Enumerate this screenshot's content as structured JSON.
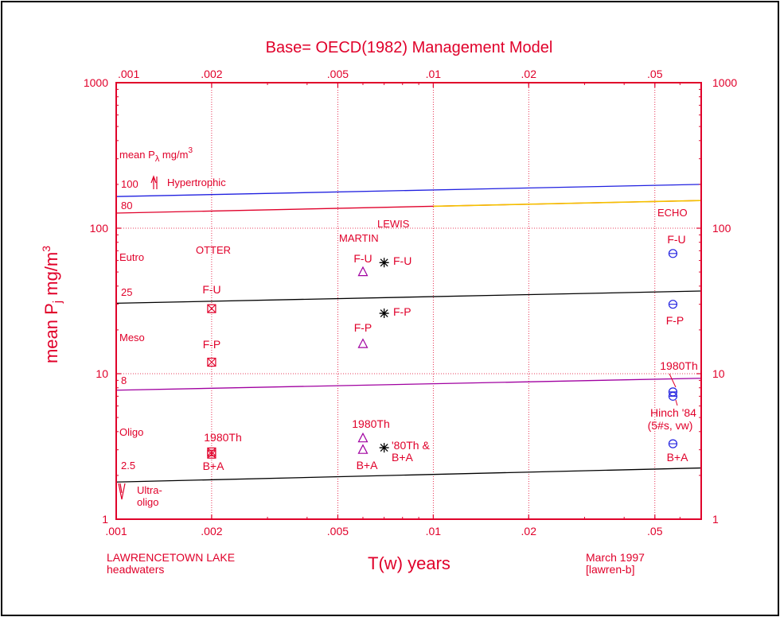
{
  "chart_data": {
    "type": "scatter",
    "title": "Base= OECD(1982) Management Model",
    "xlabel": "T(w) years",
    "ylabel": "mean Pj mg/m3",
    "ylabel_main": "mean P",
    "ylabel_sub": "j",
    "ylabel_unit": " mg/m",
    "ylabel_sup": "3",
    "xscale": "log",
    "yscale": "log",
    "xlim": [
      0.001,
      0.07
    ],
    "ylim": [
      1,
      1000
    ],
    "x_ticks": [
      ".001",
      ".002",
      ".005",
      ".01",
      ".02",
      ".05"
    ],
    "x_tick_values": [
      0.001,
      0.002,
      0.005,
      0.01,
      0.02,
      0.05
    ],
    "y_ticks": [
      "1",
      "10",
      "100",
      "1000"
    ],
    "y_tick_values": [
      1,
      10,
      100,
      1000
    ],
    "grid": true,
    "colors": {
      "axis": "#e0002a",
      "text": "#e0002a",
      "grid": "#e0002a",
      "triangle": "#a000a0",
      "circle": "#2020e0",
      "square": "#e0002a",
      "star": "#000000",
      "line_100": "#2020e0",
      "line_80": "#e0002a",
      "line_80_tail": "#f5c000",
      "line_25": "#000000",
      "line_8": "#a000a0",
      "line_2_5": "#000000"
    },
    "legend_box": {
      "title_main": "mean P",
      "title_sub": "λ",
      "title_unit": " mg/m",
      "title_sup": "3"
    },
    "boundary_lines": [
      {
        "name": "100",
        "points": [
          [
            0.001,
            165
          ],
          [
            0.07,
            200
          ]
        ]
      },
      {
        "name": "80",
        "points": [
          [
            0.001,
            127
          ],
          [
            0.07,
            155
          ]
        ]
      },
      {
        "name": "25",
        "points": [
          [
            0.001,
            30.5
          ],
          [
            0.07,
            37
          ]
        ]
      },
      {
        "name": "8",
        "points": [
          [
            0.001,
            7.7
          ],
          [
            0.07,
            9.3
          ]
        ]
      },
      {
        "name": "2.5",
        "points": [
          [
            0.001,
            1.8
          ],
          [
            0.07,
            2.25
          ]
        ]
      }
    ],
    "zone_labels": [
      {
        "text": "Hypertrophic",
        "value": "100"
      },
      {
        "text": "Eutro"
      },
      {
        "text": "Meso"
      },
      {
        "text": "Oligo"
      },
      {
        "text": "Ultra-",
        "text2": "oligo"
      }
    ],
    "lake_labels": [
      "OTTER",
      "MARTIN",
      "LEWIS",
      "ECHO"
    ],
    "series": [
      {
        "name": "OTTER",
        "marker": "square",
        "points": [
          {
            "x": 0.002,
            "y": 28,
            "label": "F-U"
          },
          {
            "x": 0.002,
            "y": 12,
            "label": "F-P"
          },
          {
            "x": 0.002,
            "y": 2.9,
            "label": "1980Th"
          },
          {
            "x": 0.002,
            "y": 2.8,
            "label": "B+A"
          }
        ]
      },
      {
        "name": "MARTIN",
        "marker": "triangle",
        "points": [
          {
            "x": 0.006,
            "y": 50,
            "label": "F-U"
          },
          {
            "x": 0.006,
            "y": 16,
            "label": "F-P"
          },
          {
            "x": 0.006,
            "y": 3.6,
            "label": "1980Th"
          },
          {
            "x": 0.006,
            "y": 3.0,
            "label": "B+A"
          }
        ]
      },
      {
        "name": "LEWIS",
        "marker": "star",
        "points": [
          {
            "x": 0.007,
            "y": 58,
            "label": "F-U"
          },
          {
            "x": 0.007,
            "y": 26,
            "label": "F-P"
          },
          {
            "x": 0.007,
            "y": 3.1,
            "label": "'80Th &"
          }
        ],
        "extra_label": "B+A"
      },
      {
        "name": "ECHO",
        "marker": "circle",
        "points": [
          {
            "x": 0.057,
            "y": 67,
            "label": "F-U"
          },
          {
            "x": 0.057,
            "y": 30,
            "label": "F-P"
          },
          {
            "x": 0.057,
            "y": 7.5,
            "label": "1980Th"
          },
          {
            "x": 0.057,
            "y": 7.0,
            "label": "Hinch '84"
          },
          {
            "x": 0.057,
            "y": 3.3,
            "label": "B+A"
          }
        ],
        "extra_label": "(5#s, vw)"
      }
    ],
    "footer": {
      "left_line1": "LAWRENCETOWN LAKE",
      "left_line2": "headwaters",
      "right_line1": "March 1997",
      "right_line2": "[lawren-b]"
    }
  }
}
